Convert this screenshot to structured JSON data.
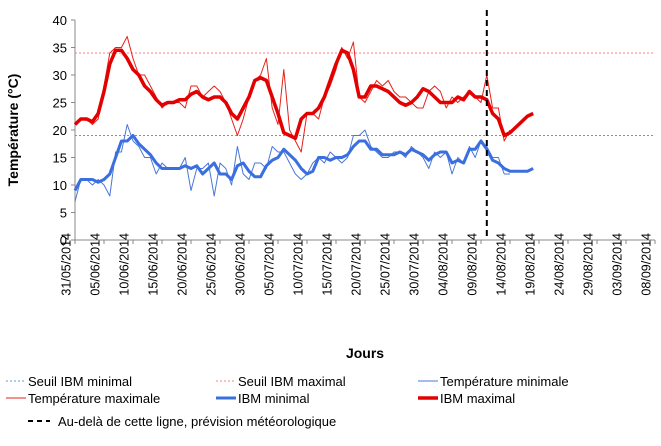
{
  "chart_data": {
    "type": "line",
    "y_label": "Température (°C)",
    "x_label": "Jours",
    "categories": [
      "31/05/2014",
      null,
      null,
      null,
      null,
      "05/06/2014",
      null,
      null,
      null,
      null,
      "10/06/2014",
      null,
      null,
      null,
      null,
      "15/06/2014",
      null,
      null,
      null,
      null,
      "20/06/2014",
      null,
      null,
      null,
      null,
      "25/06/2014",
      null,
      null,
      null,
      null,
      "30/06/2014",
      null,
      null,
      null,
      null,
      "05/07/2014",
      null,
      null,
      null,
      null,
      "10/07/2014",
      null,
      null,
      null,
      null,
      "15/07/2014",
      null,
      null,
      null,
      null,
      "20/07/2014",
      null,
      null,
      null,
      null,
      "25/07/2014",
      null,
      null,
      null,
      null,
      "30/07/2014",
      null,
      null,
      null,
      null,
      "04/08/2014",
      null,
      null,
      null,
      null,
      "09/08/2014",
      null,
      null,
      null,
      null,
      "14/08/2014",
      null,
      null,
      null,
      null,
      "19/08/2014",
      null,
      null,
      null,
      null,
      "24/08/2014",
      null,
      null,
      null,
      null,
      "29/08/2014",
      null,
      null,
      null,
      null,
      "03/09/2014",
      null,
      null,
      null,
      null,
      "08/09/2014"
    ],
    "ylim": [
      0,
      40
    ],
    "yticks": [
      0,
      5,
      10,
      15,
      20,
      25,
      30,
      35,
      40
    ],
    "series": [
      {
        "name": "Seuil IBM minimal",
        "color": "#5b9bd5",
        "style": "dotted",
        "width": 1,
        "value": 19
      },
      {
        "name": "Seuil IBM maximal",
        "color": "#ff8080",
        "style": "dotted",
        "width": 1,
        "value": 34
      },
      {
        "name": "Température minimale",
        "color": "#4a78d8",
        "style": "solid",
        "width": 1,
        "values": [
          7,
          11,
          11,
          10,
          11,
          10,
          8,
          16,
          16,
          21,
          18,
          17,
          15,
          15,
          12,
          14,
          13,
          13,
          13,
          15,
          9,
          13,
          13,
          14,
          8,
          14,
          13,
          10,
          17,
          12,
          11,
          14,
          14,
          13,
          17,
          16,
          16,
          14,
          12,
          11,
          12,
          14,
          15,
          14,
          16,
          15,
          14,
          15,
          19,
          19,
          20,
          17,
          16,
          15,
          15,
          16,
          16,
          15,
          17,
          16,
          15,
          13,
          16,
          15,
          16,
          12,
          15,
          14,
          17,
          15,
          18,
          17,
          15,
          15,
          12,
          12,
          null,
          null,
          null,
          null,
          null,
          null,
          null,
          null,
          null,
          null,
          null,
          null,
          null,
          null,
          null,
          null,
          null,
          null,
          null,
          null,
          null,
          null,
          null,
          null,
          null
        ]
      },
      {
        "name": "Température maximale",
        "color": "#e8201a",
        "style": "solid",
        "width": 1,
        "values": [
          21,
          22,
          22,
          21,
          22,
          28,
          34,
          35,
          35,
          37,
          33,
          30,
          30,
          28,
          26,
          24,
          25,
          25,
          25,
          24,
          28,
          28,
          26,
          27,
          28,
          27,
          25,
          22,
          19,
          22,
          26,
          29,
          30,
          33,
          24,
          21,
          31,
          20,
          18,
          16,
          23,
          23,
          22,
          26,
          28,
          31,
          35,
          33,
          36,
          26,
          25,
          27,
          29,
          28,
          29,
          27,
          26,
          26,
          25,
          24,
          24,
          27,
          28,
          27,
          24,
          26,
          25,
          26,
          27,
          26,
          25,
          30,
          24,
          24,
          18,
          20,
          null,
          null,
          null,
          null,
          null,
          null,
          null,
          null,
          null,
          null,
          null,
          null,
          null,
          null,
          null,
          null,
          null,
          null,
          null,
          null,
          null,
          null,
          null,
          null,
          null
        ]
      },
      {
        "name": "IBM minimal",
        "color": "#3b6fe0",
        "style": "solid",
        "width": 3,
        "values": [
          9,
          11,
          11,
          11,
          10.5,
          11,
          12,
          15,
          18,
          18,
          19,
          17.5,
          16.5,
          15.5,
          14,
          13,
          13,
          13,
          13,
          13.5,
          13,
          13.5,
          12,
          13,
          14,
          12,
          12,
          11,
          13.5,
          14,
          12.5,
          11.5,
          11.5,
          13.5,
          14.5,
          15,
          16.5,
          15.5,
          14.5,
          13,
          12,
          12.5,
          15,
          15,
          14.5,
          15,
          15,
          15.5,
          17,
          18,
          18,
          16.5,
          16.5,
          15.5,
          15.5,
          15.5,
          16,
          15.5,
          16.5,
          16,
          15.5,
          14.5,
          15.5,
          16,
          16,
          14,
          14.5,
          14,
          16.5,
          16.5,
          18,
          16.5,
          14.5,
          14,
          13,
          12.5,
          12.5,
          12.5,
          12.5,
          13,
          null,
          null,
          null,
          null,
          null,
          null,
          null,
          null,
          null,
          null,
          null,
          null,
          null,
          null,
          null,
          null,
          null,
          null,
          null,
          null,
          null
        ]
      },
      {
        "name": "IBM maximal",
        "color": "#e30000",
        "style": "solid",
        "width": 3.5,
        "values": [
          21,
          22,
          22,
          21.5,
          23,
          27,
          32,
          34.5,
          34.5,
          33,
          31,
          30,
          28,
          27,
          25.5,
          24.5,
          25,
          25,
          25.5,
          25.5,
          26.5,
          27,
          26,
          25.5,
          26,
          26,
          25,
          23,
          22,
          24,
          26,
          29,
          29.5,
          29,
          26,
          23,
          19.5,
          19,
          18.5,
          22,
          23,
          23,
          24,
          26,
          29,
          32,
          34.5,
          34,
          31,
          26,
          26,
          28,
          28,
          27.5,
          27,
          26,
          25,
          24.5,
          25,
          26,
          27.5,
          27,
          26,
          25,
          25,
          25,
          26,
          25.5,
          27,
          26,
          26,
          25.5,
          23,
          22,
          19,
          19.5,
          20.5,
          21.5,
          22.5,
          23,
          null,
          null,
          null,
          null,
          null,
          null,
          null,
          null,
          null,
          null,
          null,
          null,
          null,
          null,
          null,
          null,
          null,
          null,
          null,
          null,
          null
        ]
      }
    ],
    "forecast_line": {
      "label": "Au-delà de cette ligne, prévision météorologique",
      "x_index": 71
    }
  }
}
